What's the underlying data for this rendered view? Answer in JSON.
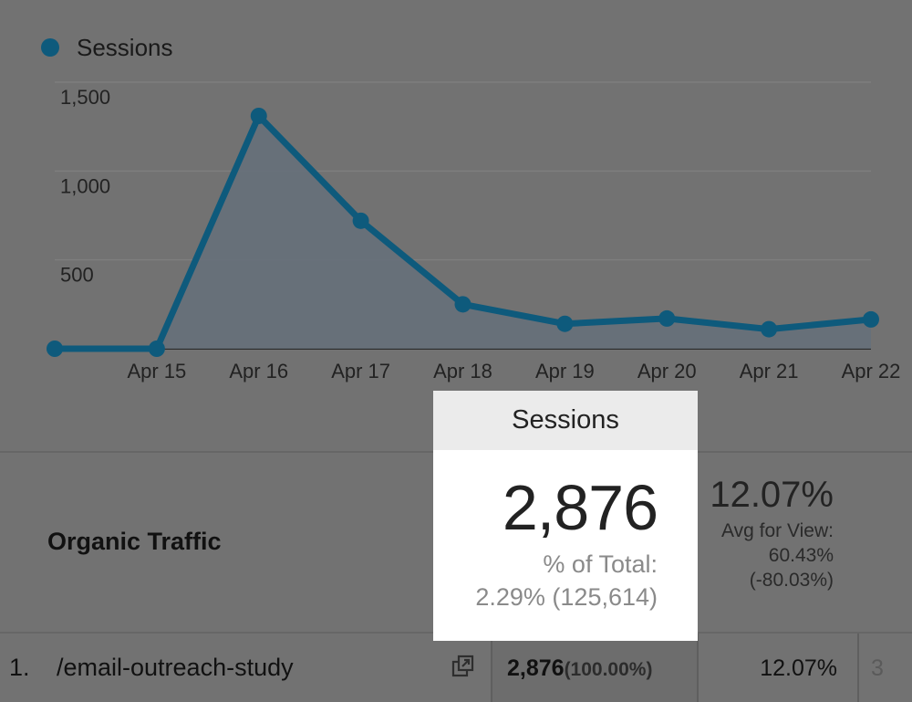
{
  "legend": {
    "series_name": "Sessions",
    "color": "#0e5a7c"
  },
  "chart_data": {
    "type": "area",
    "x": [
      "",
      "Apr 15",
      "Apr 16",
      "Apr 17",
      "Apr 18",
      "Apr 19",
      "Apr 20",
      "Apr 21",
      "Apr 22"
    ],
    "series": [
      {
        "name": "Sessions",
        "values": [
          0,
          0,
          1310,
          720,
          250,
          140,
          170,
          110,
          165
        ]
      }
    ],
    "yticks": [
      "500",
      "1,000",
      "1,500"
    ],
    "ylim": [
      0,
      1500
    ],
    "grid": true,
    "legend_position": "top-left"
  },
  "highlight": {
    "header": "Sessions",
    "value": "2,876",
    "pct_label": "% of Total:",
    "pct_value": "2.29% (125,614)"
  },
  "segment": {
    "label": "Organic Traffic"
  },
  "rate_summary": {
    "value": "12.07%",
    "avg_label": "Avg for View:",
    "avg_value": "60.43%",
    "diff": "(-80.03%)"
  },
  "row": {
    "index": "1.",
    "page": "/email-outreach-study",
    "sessions": "2,876",
    "sessions_pct": "(100.00%)",
    "rate": "12.07%",
    "truncated": "3"
  },
  "icons": {
    "open_link": "external-link-icon",
    "legend_dot": "legend-dot-icon"
  }
}
